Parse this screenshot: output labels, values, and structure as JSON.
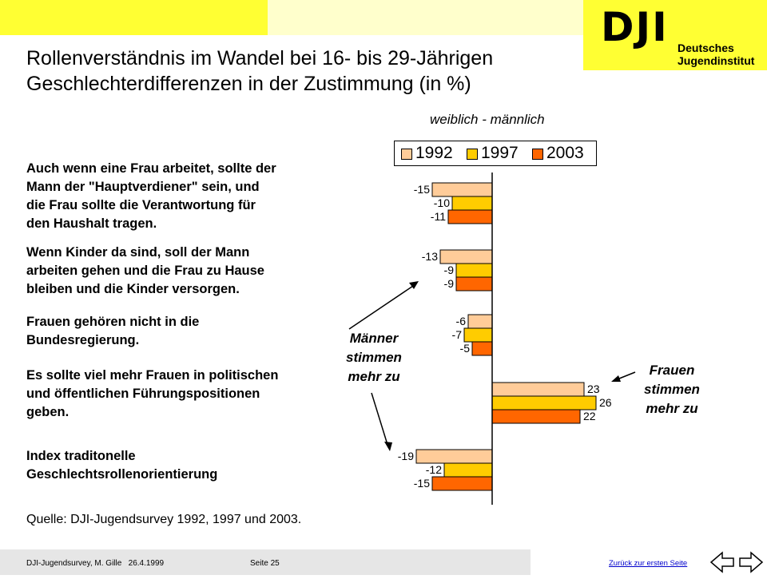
{
  "header": {
    "logo_letters": "DJI",
    "logo_line1": "Deutsches",
    "logo_line2": "Jugendinstitut",
    "title_line1": "Rollenverständnis im Wandel bei 16- bis 29-Jährigen",
    "title_line2": "Geschlechterdifferenzen in der Zustimmung (in %)",
    "subtitle": "weiblich - männlich"
  },
  "statements": [
    {
      "lines": [
        "Auch wenn eine Frau arbeitet, sollte der",
        "Mann der \"Hauptverdiener\" sein, und",
        "die Frau sollte die Verantwortung für",
        "den Haushalt tragen."
      ]
    },
    {
      "lines": [
        "Wenn Kinder da sind, soll der Mann",
        "arbeiten gehen und die Frau zu Hause",
        "bleiben und die Kinder versorgen."
      ]
    },
    {
      "lines": [
        "Frauen gehören nicht in die",
        "Bundesregierung."
      ]
    },
    {
      "lines": [
        "Es sollte viel mehr Frauen in politischen",
        "und öffentlichen Führungspositionen",
        "geben."
      ]
    },
    {
      "lines": [
        "Index traditonelle",
        "Geschlechtsrollenorientierung"
      ]
    }
  ],
  "annotations": {
    "men": [
      "Männer",
      "stimmen",
      "mehr zu"
    ],
    "women": [
      "Frauen",
      "stimmen",
      "mehr zu"
    ]
  },
  "chart_data": {
    "type": "bar",
    "orientation": "horizontal",
    "categories": [
      "Auch wenn eine Frau arbeitet, sollte der Mann der \"Hauptverdiener\" sein, und die Frau sollte die Verantwortung für den Haushalt tragen.",
      "Wenn Kinder da sind, soll der Mann arbeiten gehen und die Frau zu Hause bleiben und die Kinder versorgen.",
      "Frauen gehören nicht in die Bundesregierung.",
      "Es sollte viel mehr Frauen in politischen und öffentlichen Führungspositionen geben.",
      "Index traditonelle Geschlechtsrollenorientierung"
    ],
    "series": [
      {
        "name": "1992",
        "color": "#ffcc99",
        "values": [
          -15,
          -13,
          -6,
          23,
          -19
        ]
      },
      {
        "name": "1997",
        "color": "#ffcc00",
        "values": [
          -10,
          -9,
          -7,
          26,
          -12
        ]
      },
      {
        "name": "2003",
        "color": "#ff6600",
        "values": [
          -11,
          -9,
          -5,
          22,
          -15
        ]
      }
    ],
    "legend_position": "top",
    "grid": false
  },
  "source": "Quelle: DJI-Jugendsurvey 1992, 1997 und 2003.",
  "footer": {
    "left": "DJI-Jugendsurvey, M. Gille   26.4.1999",
    "page": "Seite 25",
    "link": "Zurück zur ersten Seite"
  },
  "colors": {
    "band_yellow": "#ffff33",
    "band_pale": "#ffffcc"
  }
}
